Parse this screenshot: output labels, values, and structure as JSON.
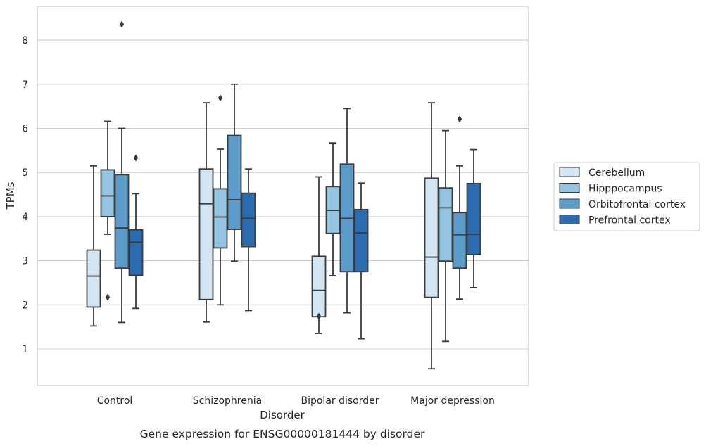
{
  "caption": "Gene expression for ENSG00000181444 by disorder",
  "chart_data": {
    "type": "box",
    "title": "",
    "xlabel": "Disorder",
    "ylabel": "TPMs",
    "ylim": [
      0.2,
      8.8
    ],
    "yticks": [
      1,
      2,
      3,
      4,
      5,
      6,
      7,
      8
    ],
    "grid": "horizontal",
    "legend_position": "right",
    "categories": [
      "Control",
      "Schizophrenia",
      "Bipolar disorder",
      "Major depression"
    ],
    "series": [
      {
        "name": "Cerebellum",
        "color": "#d3e4f3",
        "boxes": [
          {
            "whislo": 1.52,
            "q1": 1.95,
            "med": 2.65,
            "q3": 3.24,
            "whishi": 5.15,
            "fliers": []
          },
          {
            "whislo": 1.61,
            "q1": 2.12,
            "med": 4.29,
            "q3": 5.08,
            "whishi": 6.58,
            "fliers": []
          },
          {
            "whislo": 1.35,
            "q1": 1.73,
            "med": 2.33,
            "q3": 3.1,
            "whishi": 4.9,
            "fliers": [
              1.74
            ]
          },
          {
            "whislo": 0.55,
            "q1": 2.17,
            "med": 3.08,
            "q3": 4.87,
            "whishi": 6.58,
            "fliers": []
          }
        ]
      },
      {
        "name": "Hipppocampus",
        "color": "#94c4df",
        "boxes": [
          {
            "whislo": 3.6,
            "q1": 4.0,
            "med": 4.47,
            "q3": 5.06,
            "whishi": 6.16,
            "fliers": [
              2.17
            ]
          },
          {
            "whislo": 2.0,
            "q1": 3.29,
            "med": 3.99,
            "q3": 4.63,
            "whishi": 5.53,
            "fliers": [
              6.69
            ]
          },
          {
            "whislo": 2.66,
            "q1": 3.62,
            "med": 4.14,
            "q3": 4.68,
            "whishi": 5.67,
            "fliers": []
          },
          {
            "whislo": 1.17,
            "q1": 2.99,
            "med": 4.2,
            "q3": 4.65,
            "whishi": 5.95,
            "fliers": []
          }
        ]
      },
      {
        "name": "Orbitofrontal cortex",
        "color": "#5b9ccb",
        "boxes": [
          {
            "whislo": 1.6,
            "q1": 2.83,
            "med": 3.74,
            "q3": 4.95,
            "whishi": 6.0,
            "fliers": [
              8.36
            ]
          },
          {
            "whislo": 2.99,
            "q1": 3.71,
            "med": 4.38,
            "q3": 5.84,
            "whishi": 7.0,
            "fliers": []
          },
          {
            "whislo": 1.82,
            "q1": 2.75,
            "med": 3.96,
            "q3": 5.19,
            "whishi": 6.45,
            "fliers": []
          },
          {
            "whislo": 2.13,
            "q1": 2.83,
            "med": 3.59,
            "q3": 4.09,
            "whishi": 5.15,
            "fliers": [
              6.21
            ]
          }
        ]
      },
      {
        "name": "Prefrontal cortex",
        "color": "#2a6caf",
        "boxes": [
          {
            "whislo": 1.92,
            "q1": 2.67,
            "med": 3.42,
            "q3": 3.7,
            "whishi": 4.52,
            "fliers": [
              5.33
            ]
          },
          {
            "whislo": 1.87,
            "q1": 3.32,
            "med": 3.96,
            "q3": 4.53,
            "whishi": 5.08,
            "fliers": []
          },
          {
            "whislo": 1.23,
            "q1": 2.75,
            "med": 3.63,
            "q3": 4.16,
            "whishi": 4.76,
            "fliers": []
          },
          {
            "whislo": 2.39,
            "q1": 3.14,
            "med": 3.6,
            "q3": 4.75,
            "whishi": 5.52,
            "fliers": []
          }
        ]
      }
    ]
  }
}
